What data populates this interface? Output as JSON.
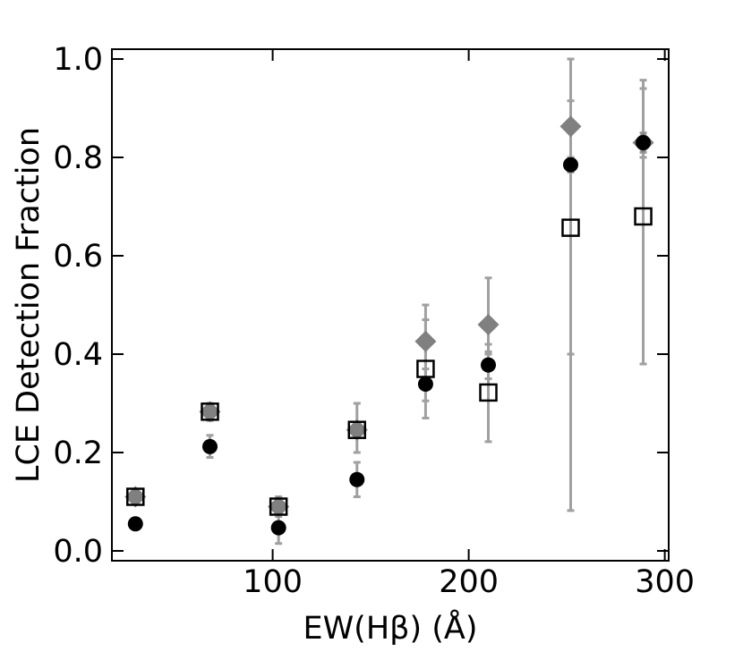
{
  "chart_data": {
    "type": "scatter",
    "title": "",
    "xlabel": "EW(Hβ) (Å)",
    "ylabel": "LCE Detection Fraction",
    "xlim": [
      18,
      302
    ],
    "ylim": [
      -0.02,
      1.02
    ],
    "x_ticks": [
      100,
      200,
      300
    ],
    "x_tick_labels": [
      "100",
      "200",
      "300"
    ],
    "y_ticks": [
      0.0,
      0.2,
      0.4,
      0.6,
      0.8,
      1.0
    ],
    "y_tick_labels": [
      "0.0",
      "0.2",
      "0.4",
      "0.6",
      "0.8",
      "1.0"
    ],
    "grid": false,
    "legend": "none",
    "colors": {
      "black_series": "#000000",
      "gray_series": "#808080",
      "errorbar": "#a0a0a0"
    },
    "series": [
      {
        "marker": "diamond",
        "color": "#808080",
        "points": [
          {
            "x": 30,
            "y": 0.11,
            "err": [
              0.1,
              0.12
            ]
          },
          {
            "x": 68,
            "y": 0.283,
            "err": [
              0.265,
              0.3
            ]
          },
          {
            "x": 103,
            "y": 0.09,
            "err": [
              0.07,
              0.11
            ]
          },
          {
            "x": 143,
            "y": 0.246,
            "err": [
              0.2,
              0.3
            ]
          },
          {
            "x": 178,
            "y": 0.426,
            "err": [
              0.33,
              0.5
            ]
          },
          {
            "x": 210,
            "y": 0.46,
            "err": [
              0.4,
              0.555
            ]
          },
          {
            "x": 252,
            "y": 0.863,
            "err": [
              0.4,
              0.915
            ]
          },
          {
            "x": 289,
            "y": 0.83,
            "err": [
              0.8,
              0.94
            ]
          }
        ]
      },
      {
        "marker": "open-square",
        "color": "#000000",
        "points": [
          {
            "x": 30,
            "y": 0.11
          },
          {
            "x": 68,
            "y": 0.283
          },
          {
            "x": 103,
            "y": 0.09
          },
          {
            "x": 143,
            "y": 0.246
          },
          {
            "x": 178,
            "y": 0.37,
            "err": [
              0.27,
              0.47
            ]
          },
          {
            "x": 210,
            "y": 0.322,
            "err": [
              0.222,
              0.42
            ]
          },
          {
            "x": 252,
            "y": 0.657,
            "err": [
              0.082,
              1.0
            ]
          },
          {
            "x": 289,
            "y": 0.68,
            "err": [
              0.38,
              0.957
            ]
          }
        ]
      },
      {
        "marker": "circle",
        "color": "#000000",
        "points": [
          {
            "x": 30,
            "y": 0.055
          },
          {
            "x": 68,
            "y": 0.212,
            "err": [
              0.19,
              0.235
            ]
          },
          {
            "x": 103,
            "y": 0.047,
            "err": [
              0.015,
              0.075
            ]
          },
          {
            "x": 143,
            "y": 0.145,
            "err": [
              0.11,
              0.18
            ]
          },
          {
            "x": 178,
            "y": 0.339,
            "err": [
              0.305,
              0.37
            ]
          },
          {
            "x": 210,
            "y": 0.378,
            "err": [
              0.35,
              0.405
            ]
          },
          {
            "x": 252,
            "y": 0.785,
            "err": [
              0.77,
              0.8
            ]
          },
          {
            "x": 289,
            "y": 0.83,
            "err": [
              0.81,
              0.85
            ]
          }
        ]
      }
    ]
  }
}
